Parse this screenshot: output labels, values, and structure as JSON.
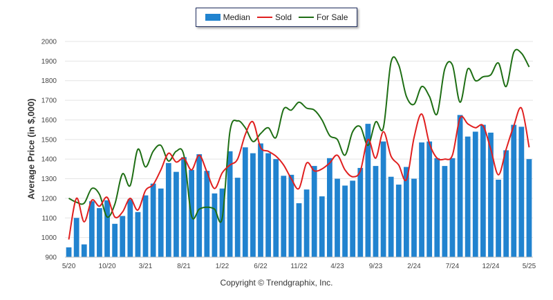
{
  "chart_data": {
    "type": "bar",
    "ylabel": "Average Price (in $,000)",
    "ylim": [
      900,
      2000
    ],
    "yticks": [
      900,
      1000,
      1100,
      1200,
      1300,
      1400,
      1500,
      1600,
      1700,
      1800,
      1900,
      2000
    ],
    "xtick_labels": [
      {
        "index": 0,
        "label": "5/20"
      },
      {
        "index": 5,
        "label": "10/20"
      },
      {
        "index": 10,
        "label": "3/21"
      },
      {
        "index": 15,
        "label": "8/21"
      },
      {
        "index": 20,
        "label": "1/22"
      },
      {
        "index": 25,
        "label": "6/22"
      },
      {
        "index": 30,
        "label": "11/22"
      },
      {
        "index": 35,
        "label": "4/23"
      },
      {
        "index": 40,
        "label": "9/23"
      },
      {
        "index": 45,
        "label": "2/24"
      },
      {
        "index": 50,
        "label": "7/24"
      },
      {
        "index": 55,
        "label": "12/24"
      },
      {
        "index": 60,
        "label": "5/25"
      }
    ],
    "grid": true,
    "legend_position": "top-center",
    "series": [
      {
        "name": "Median",
        "kind": "bar",
        "color": "#2183cf",
        "values": [
          950,
          1100,
          965,
          1185,
          1150,
          1190,
          1070,
          1110,
          1195,
          1130,
          1215,
          1275,
          1250,
          1380,
          1335,
          1410,
          1345,
          1425,
          1340,
          1225,
          1250,
          1440,
          1305,
          1460,
          1430,
          1480,
          1430,
          1400,
          1315,
          1320,
          1175,
          1245,
          1365,
          1210,
          1405,
          1300,
          1265,
          1290,
          1355,
          1580,
          1365,
          1490,
          1310,
          1270,
          1360,
          1300,
          1485,
          1490,
          1405,
          1365,
          1405,
          1625,
          1515,
          1540,
          1575,
          1535,
          1295,
          1445,
          1575,
          1565,
          1400
        ]
      },
      {
        "name": "Sold",
        "kind": "line",
        "color": "#e01f1f",
        "values": [
          990,
          1200,
          1080,
          1190,
          1160,
          1205,
          1105,
          1130,
          1200,
          1140,
          1240,
          1270,
          1345,
          1430,
          1385,
          1405,
          1345,
          1420,
          1335,
          1250,
          1330,
          1370,
          1400,
          1525,
          1590,
          1460,
          1440,
          1415,
          1370,
          1300,
          1250,
          1380,
          1340,
          1350,
          1380,
          1420,
          1345,
          1310,
          1340,
          1500,
          1405,
          1540,
          1415,
          1370,
          1295,
          1510,
          1630,
          1480,
          1405,
          1400,
          1420,
          1610,
          1580,
          1560,
          1570,
          1450,
          1320,
          1450,
          1570,
          1660,
          1460
        ]
      },
      {
        "name": "For Sale",
        "kind": "line",
        "color": "#1e6e14",
        "values": [
          1200,
          1180,
          1175,
          1250,
          1220,
          1105,
          1170,
          1325,
          1265,
          1450,
          1360,
          1440,
          1470,
          1390,
          1440,
          1420,
          1110,
          1145,
          1155,
          1145,
          1100,
          1540,
          1595,
          1560,
          1490,
          1530,
          1560,
          1510,
          1655,
          1650,
          1690,
          1660,
          1650,
          1600,
          1520,
          1500,
          1420,
          1540,
          1565,
          1470,
          1590,
          1560,
          1895,
          1880,
          1720,
          1680,
          1770,
          1720,
          1630,
          1860,
          1880,
          1690,
          1860,
          1800,
          1820,
          1830,
          1890,
          1770,
          1945,
          1940,
          1870
        ]
      }
    ]
  },
  "legend": [
    {
      "label": "Median",
      "color": "#2183cf",
      "kind": "bar"
    },
    {
      "label": "Sold",
      "color": "#e01f1f",
      "kind": "line"
    },
    {
      "label": "For Sale",
      "color": "#1e6e14",
      "kind": "line"
    }
  ],
  "footer": {
    "credit": "Copyright © Trendgraphix, Inc."
  }
}
